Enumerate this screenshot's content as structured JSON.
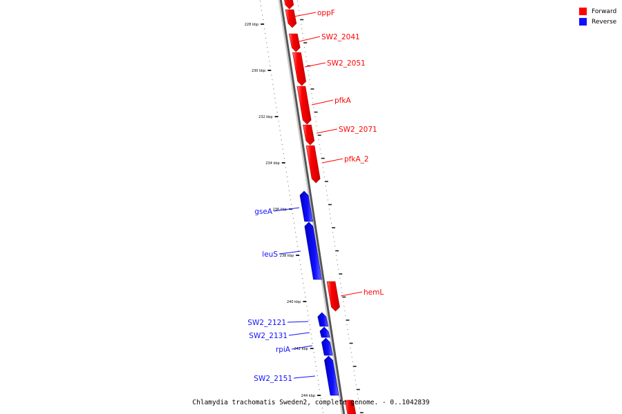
{
  "legend": {
    "forward_label": "Forward",
    "reverse_label": "Reverse",
    "forward_color": "#ff0000",
    "reverse_color": "#1010ff"
  },
  "caption": "Chlamydia trachomatis Sweden2, complete genome. - 0..1042839",
  "scale_labels": [
    "228 kbp",
    "230 kbp",
    "232 kbp",
    "234 kbp",
    "236 kbp",
    "238 kbp",
    "240 kbp",
    "242 kbp",
    "244 kbp"
  ],
  "genes": [
    {
      "name": "",
      "strand": "forward"
    },
    {
      "name": "oppF",
      "strand": "forward"
    },
    {
      "name": "SW2_2041",
      "strand": "forward"
    },
    {
      "name": "SW2_2051",
      "strand": "forward"
    },
    {
      "name": "pfkA",
      "strand": "forward"
    },
    {
      "name": "SW2_2071",
      "strand": "forward"
    },
    {
      "name": "pfkA_2",
      "strand": "forward"
    },
    {
      "name": "gseA",
      "strand": "reverse"
    },
    {
      "name": "leuS",
      "strand": "reverse"
    },
    {
      "name": "hemL",
      "strand": "forward"
    },
    {
      "name": "SW2_2121",
      "strand": "reverse"
    },
    {
      "name": "SW2_2131",
      "strand": "reverse"
    },
    {
      "name": "rpiA",
      "strand": "reverse"
    },
    {
      "name": "SW2_2151",
      "strand": "reverse"
    },
    {
      "name": "",
      "strand": "forward"
    }
  ]
}
